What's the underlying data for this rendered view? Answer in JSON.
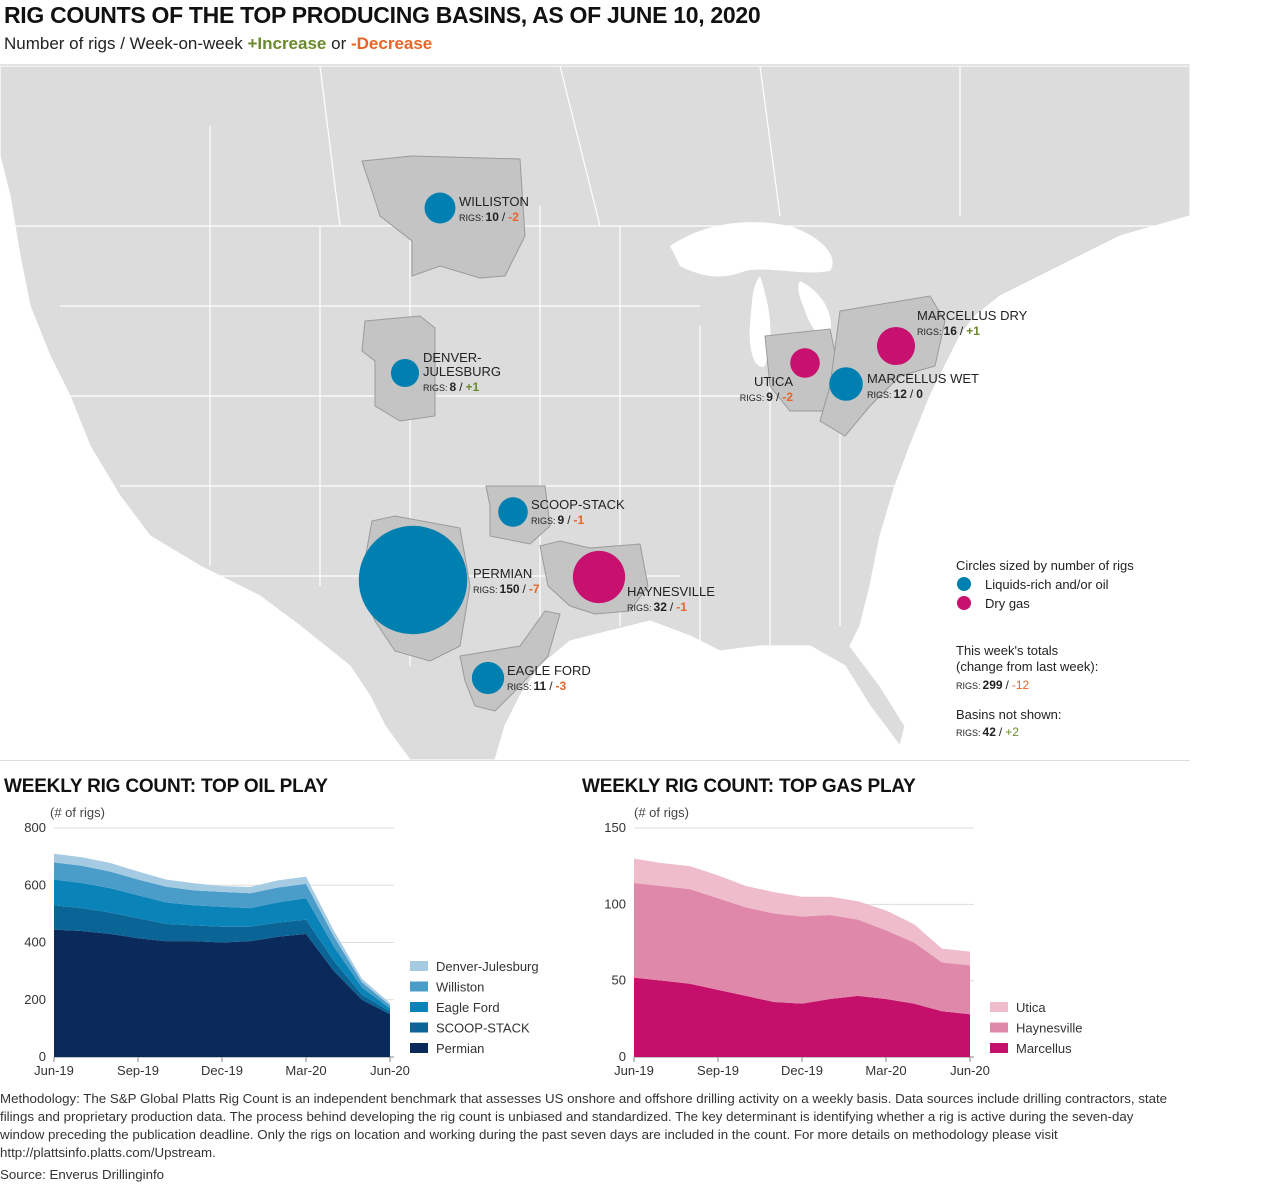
{
  "title": "RIG COUNTS OF THE TOP PRODUCING BASINS, AS OF JUNE 10, 2020",
  "subtitle": {
    "prefix": "Number of rigs / Week-on-week",
    "increase": "+Increase",
    "or": "or",
    "decrease": "-Decrease"
  },
  "colors": {
    "oil": "#0080b0",
    "gas": "#c8106e",
    "increase": "#6a8a2a",
    "decrease": "#e8652a",
    "basin": "#c4c4c4",
    "land": "#dcdcdc"
  },
  "basins": [
    {
      "name": "WILLISTON",
      "type": "oil",
      "rigs": 10,
      "change": "-2"
    },
    {
      "name": "DENVER-\nJULESBURG",
      "type": "oil",
      "rigs": 8,
      "change": "+1"
    },
    {
      "name": "SCOOP-STACK",
      "type": "oil",
      "rigs": 9,
      "change": "-1"
    },
    {
      "name": "PERMIAN",
      "type": "oil",
      "rigs": 150,
      "change": "-7"
    },
    {
      "name": "HAYNESVILLE",
      "type": "gas",
      "rigs": 32,
      "change": "-1"
    },
    {
      "name": "EAGLE FORD",
      "type": "oil",
      "rigs": 11,
      "change": "-3"
    },
    {
      "name": "UTICA",
      "type": "gas",
      "rigs": 9,
      "change": "-2"
    },
    {
      "name": "MARCELLUS DRY",
      "type": "gas",
      "rigs": 16,
      "change": "+1"
    },
    {
      "name": "MARCELLUS WET",
      "type": "oil",
      "rigs": 12,
      "change": "0"
    }
  ],
  "rigs_label": "RIGS:",
  "legend": {
    "heading": "Circles sized by number of rigs",
    "oil": "Liquids-rich and/or oil",
    "gas": "Dry gas",
    "totals_heading_1": "This week's totals",
    "totals_heading_2": "(change from last week):",
    "totals_rigs": 299,
    "totals_change": "-12",
    "not_shown_heading": "Basins not shown:",
    "not_shown_rigs": 42,
    "not_shown_change": "+2"
  },
  "oil_chart": {
    "title": "WEEKLY RIG COUNT: TOP OIL PLAY",
    "unit": "(# of rigs)"
  },
  "gas_chart": {
    "title": "WEEKLY RIG COUNT: TOP GAS PLAY",
    "unit": "(# of rigs)"
  },
  "chart_data": [
    {
      "type": "area",
      "title": "WEEKLY RIG COUNT: TOP OIL PLAY",
      "ylabel": "(# of rigs)",
      "ylim": [
        0,
        800
      ],
      "yticks": [
        0,
        200,
        400,
        600,
        800
      ],
      "x": [
        "Jun-19",
        "Jul-19",
        "Aug-19",
        "Sep-19",
        "Oct-19",
        "Nov-19",
        "Dec-19",
        "Jan-20",
        "Feb-20",
        "Mar-20",
        "Apr-20",
        "May-20",
        "Jun-20"
      ],
      "xtick_labels": [
        "Jun-19",
        "Sep-19",
        "Dec-19",
        "Mar-20",
        "Jun-20"
      ],
      "stacked": true,
      "series": [
        {
          "name": "Permian",
          "color": "#0b2a5c",
          "values": [
            445,
            440,
            430,
            415,
            405,
            405,
            400,
            405,
            420,
            430,
            300,
            200,
            150
          ]
        },
        {
          "name": "SCOOP-STACK",
          "color": "#0a6596",
          "values": [
            85,
            80,
            75,
            70,
            60,
            55,
            55,
            50,
            50,
            50,
            35,
            18,
            9
          ]
        },
        {
          "name": "Eagle Ford",
          "color": "#0a84b8",
          "values": [
            90,
            88,
            85,
            80,
            75,
            70,
            70,
            65,
            70,
            75,
            50,
            25,
            11
          ]
        },
        {
          "name": "Williston",
          "color": "#4a9cc9",
          "values": [
            60,
            60,
            58,
            55,
            55,
            52,
            52,
            52,
            52,
            50,
            35,
            18,
            10
          ]
        },
        {
          "name": "Denver-Julesburg",
          "color": "#a5cbe3",
          "values": [
            30,
            30,
            30,
            28,
            25,
            25,
            20,
            22,
            25,
            25,
            20,
            12,
            8
          ]
        }
      ],
      "legend_position": "right"
    },
    {
      "type": "area",
      "title": "WEEKLY RIG COUNT: TOP GAS PLAY",
      "ylabel": "(# of rigs)",
      "ylim": [
        0,
        150
      ],
      "yticks": [
        0,
        50,
        100,
        150
      ],
      "x": [
        "Jun-19",
        "Jul-19",
        "Aug-19",
        "Sep-19",
        "Oct-19",
        "Nov-19",
        "Dec-19",
        "Jan-20",
        "Feb-20",
        "Mar-20",
        "Apr-20",
        "May-20",
        "Jun-20"
      ],
      "xtick_labels": [
        "Jun-19",
        "Sep-19",
        "Dec-19",
        "Mar-20",
        "Jun-20"
      ],
      "stacked": true,
      "series": [
        {
          "name": "Marcellus",
          "color": "#c4106a",
          "values": [
            52,
            50,
            48,
            44,
            40,
            36,
            35,
            38,
            40,
            38,
            35,
            30,
            28
          ]
        },
        {
          "name": "Haynesville",
          "color": "#df88a9",
          "values": [
            62,
            62,
            62,
            60,
            58,
            58,
            57,
            55,
            50,
            45,
            40,
            32,
            32
          ]
        },
        {
          "name": "Utica",
          "color": "#efbccb",
          "values": [
            16,
            15,
            15,
            15,
            14,
            14,
            13,
            12,
            12,
            13,
            12,
            9,
            9
          ]
        }
      ],
      "legend_position": "right"
    }
  ],
  "methodology": "Methodology: The S&P Global Platts Rig Count is an independent benchmark that assesses US onshore and offshore drilling activity on a weekly basis. Data sources include drilling contractors, state filings and proprietary production data. The process behind developing the rig count is unbiased and standardized. The key determinant is identifying whether a rig is active during the seven-day window preceding the publication deadline. Only the rigs on location and working during the past seven days are included in the count. For more details on methodology please visit http://plattsinfo.platts.com/Upstream.",
  "source": "Source: Enverus Drillinginfo"
}
